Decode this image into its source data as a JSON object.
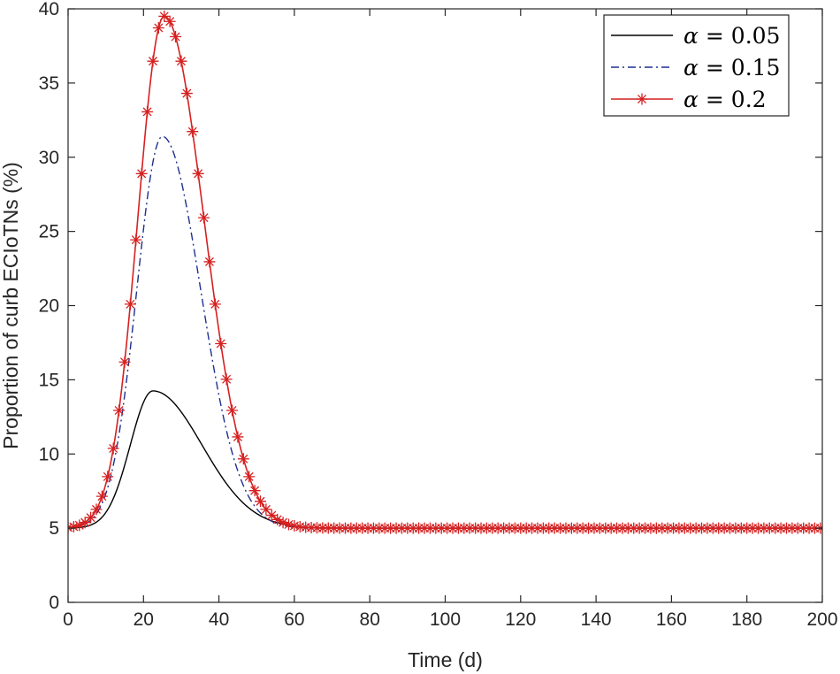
{
  "chart_data": {
    "type": "line",
    "title": "",
    "xlabel": "Time (d)",
    "ylabel": "Proportion of curb ECIoTNs (%)",
    "xlim": [
      0,
      200
    ],
    "ylim": [
      0,
      40
    ],
    "xticks": [
      0,
      20,
      40,
      60,
      80,
      100,
      120,
      140,
      160,
      180,
      200
    ],
    "yticks": [
      0,
      5,
      10,
      15,
      20,
      25,
      30,
      35,
      40
    ],
    "grid": false,
    "legend_position": "top-right",
    "series": [
      {
        "name": "α = 0.05",
        "legend_symbol": "α",
        "legend_value": "= 0.05",
        "color": "#000000",
        "line_style": "solid",
        "marker": "none",
        "peak_x": 22.5,
        "peak_y": 14.25,
        "rise_width": 6.0,
        "decay_width": 13.0
      },
      {
        "name": "α = 0.15",
        "legend_symbol": "α",
        "legend_value": "= 0.15",
        "color": "#1f2f8f",
        "line_style": "dash-dot",
        "marker": "none",
        "peak_x": 25.0,
        "peak_y": 31.4,
        "rise_width": 6.8,
        "decay_width": 10.2
      },
      {
        "name": "α = 0.2",
        "legend_symbol": "α",
        "legend_value": "= 0.2",
        "color": "#d62020",
        "line_style": "solid",
        "marker": "asterisk",
        "marker_spacing": 1.5,
        "peak_x": 25.5,
        "peak_y": 39.5,
        "rise_width": 7.0,
        "decay_width": 10.5
      }
    ],
    "baseline": 5.0,
    "x_end": 200
  }
}
